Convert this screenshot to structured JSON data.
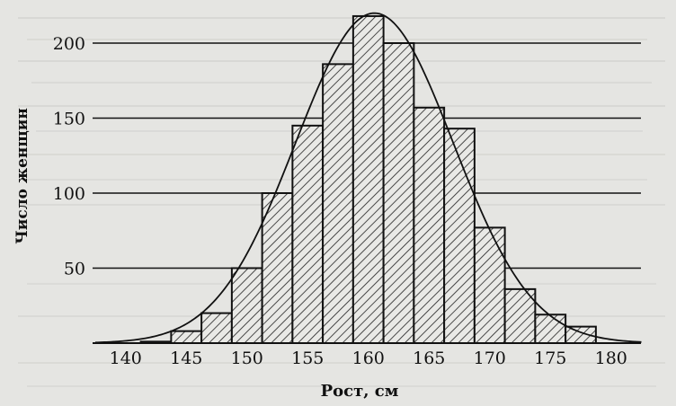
{
  "chart_data": {
    "type": "bar",
    "title": "",
    "xlabel": "Рост, см",
    "ylabel": "Число женщин",
    "x_range": [
      137.5,
      182.5
    ],
    "bin_width": 2.5,
    "ylim": [
      0,
      220
    ],
    "x_ticks": [
      140,
      145,
      150,
      155,
      160,
      165,
      170,
      175,
      180
    ],
    "y_ticks": [
      50,
      100,
      150,
      200
    ],
    "grid": true,
    "bins": [
      {
        "center": 142.5,
        "value": 1
      },
      {
        "center": 145,
        "value": 8
      },
      {
        "center": 147.5,
        "value": 20
      },
      {
        "center": 150,
        "value": 50
      },
      {
        "center": 152.5,
        "value": 100
      },
      {
        "center": 155,
        "value": 145
      },
      {
        "center": 157.5,
        "value": 186
      },
      {
        "center": 160,
        "value": 218
      },
      {
        "center": 162.5,
        "value": 200
      },
      {
        "center": 165,
        "value": 157
      },
      {
        "center": 167.5,
        "value": 143
      },
      {
        "center": 170,
        "value": 77
      },
      {
        "center": 172.5,
        "value": 36
      },
      {
        "center": 175,
        "value": 19
      },
      {
        "center": 177.5,
        "value": 11
      }
    ],
    "curve": {
      "type": "normal",
      "mean": 160.5,
      "sd": 6.5,
      "peak": 220
    }
  },
  "colors": {
    "ink": "#111111",
    "paper": "#e4e4e2",
    "bar_fill": "#e9e9e6"
  }
}
